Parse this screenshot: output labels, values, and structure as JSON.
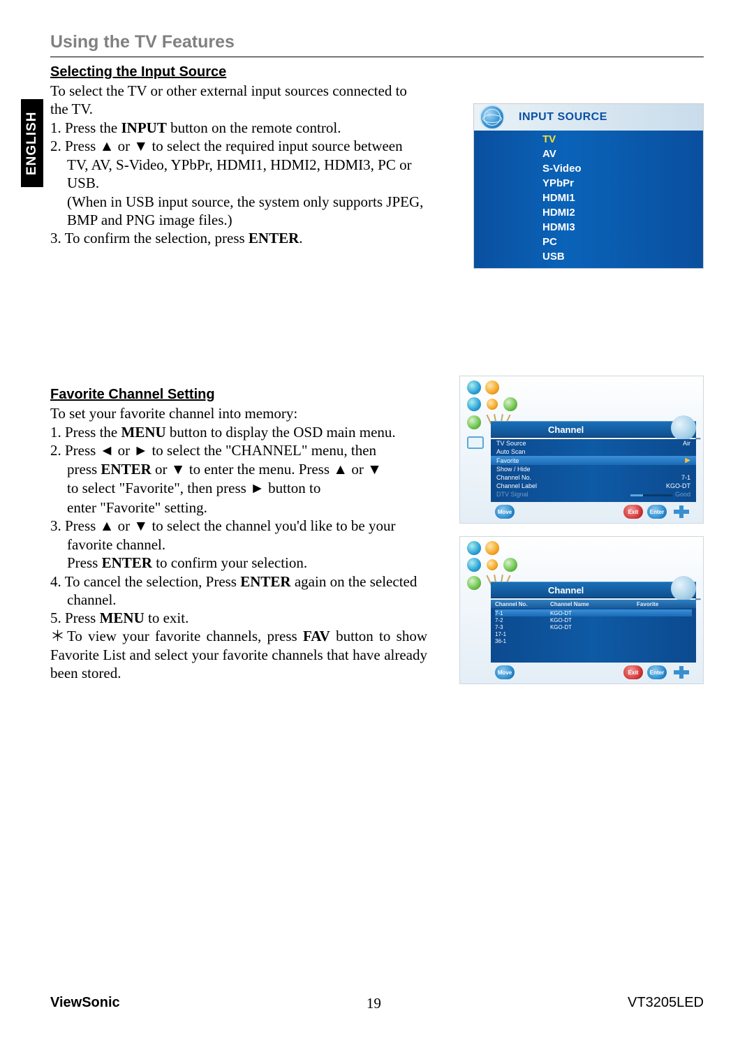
{
  "page": {
    "title": "Using the TV Features",
    "sideTab": "ENGLISH",
    "footer": {
      "brand": "ViewSonic",
      "page": "19",
      "model": "VT3205LED"
    }
  },
  "section1": {
    "heading": "Selecting the Input Source",
    "intro": "To select the TV or other external input sources connected to the TV.",
    "li1_pre": "1. Press the ",
    "li1_bold": "INPUT",
    "li1_post": " button on the remote control.",
    "li2_a": "2. Press ",
    "li2_b": " or ",
    "li2_c": " to select the required input source between ",
    "li2_line2": "TV, AV, S-Video, YPbPr, HDMI1, HDMI2, HDMI3, PC or USB.",
    "li2_paren": "(When in USB input source, the system only supports JPEG, BMP and PNG image files.)",
    "li3_pre": "3. To confirm the selection, press ",
    "li3_bold": "ENTER",
    "li3_post": "."
  },
  "inputSource": {
    "title": "INPUT  SOURCE",
    "items": [
      "TV",
      "AV",
      "S-Video",
      "YPbPr",
      "HDMI1",
      "HDMI2",
      "HDMI3",
      "PC",
      "USB"
    ],
    "selected": "TV",
    "colors": {
      "headerText": "#0a4fa3",
      "itemText": "#ffffff",
      "selectedText": "#f6e03a",
      "bodyGradFrom": "#0a4f9f",
      "bodyGradTo": "#0a63b8"
    }
  },
  "section2": {
    "heading": "Favorite Channel Setting",
    "intro": "To set your favorite channel into memory:",
    "li1_pre": "1. Press the ",
    "li1_bold": "MENU",
    "li1_post": " button to display the OSD main menu.",
    "li2_a": "2. Press ",
    "li2_b": " or ",
    "li2_c": " to select the \"CHANNEL\" menu, then ",
    "li2_line2a": "press ",
    "li2_line2b": "ENTER",
    "li2_line2c": " or ",
    "li2_line2d": " to enter the menu. Press ",
    "li2_line2e": " or ",
    "li2_line3a": "to select \"Favorite\", then press ",
    "li2_line3b": " button to ",
    "li2_line4": "enter \"Favorite\" setting.",
    "li3_a": "3. Press ",
    "li3_b": " or ",
    "li3_c": " to select the channel you'd like to be your ",
    "li3_line2": "favorite channel.",
    "li3_line3a": "Press ",
    "li3_line3b": "ENTER",
    "li3_line3c": " to confirm your selection.",
    "li4_a": "4. To cancel the selection, Press ",
    "li4_b": "ENTER",
    "li4_c": " again on the selected ",
    "li4_line2": "channel.",
    "li5_a": "5. Press ",
    "li5_b": "MENU",
    "li5_c": " to exit.",
    "note_a": "＊To view your favorite channels, press ",
    "note_b": "FAV",
    "note_c": " button to show Favorite List and select your favorite channels that have already been stored."
  },
  "osd1": {
    "title": "Channel",
    "rows": [
      {
        "left": "TV Source",
        "right": "Air",
        "hl": false
      },
      {
        "left": "Auto Scan",
        "right": "",
        "hl": false
      },
      {
        "left": "Favorite",
        "right": "▶",
        "hl": true
      },
      {
        "left": "Show / Hide",
        "right": "",
        "hl": false
      },
      {
        "left": "Channel No.",
        "right": "7-1",
        "hl": false
      },
      {
        "left": "Channel Label",
        "right": "KGO-DT",
        "hl": false
      },
      {
        "left": "DTV Signal",
        "right": "Good",
        "hl": false,
        "bar": true,
        "dim": true
      }
    ],
    "footer": {
      "left": "Move",
      "mid": "Exit",
      "right": "Enter"
    }
  },
  "osd2": {
    "title": "Channel",
    "columns": [
      "Channel No.",
      "Channel Name",
      "Favorite"
    ],
    "rows": [
      {
        "no": "7-1",
        "name": "KGO-DT",
        "fav": "",
        "hl": true
      },
      {
        "no": "7-2",
        "name": "KGO-DT",
        "fav": "",
        "hl": false
      },
      {
        "no": "7-3",
        "name": "KGO-DT",
        "fav": "",
        "hl": false
      },
      {
        "no": "17-1",
        "name": "",
        "fav": "",
        "hl": false
      },
      {
        "no": "36-1",
        "name": "",
        "fav": "",
        "hl": false
      }
    ],
    "footer": {
      "left": "Move",
      "mid": "Exit",
      "right": "Enter"
    }
  },
  "glyphs": {
    "up": "▲",
    "down": "▼",
    "left": "◄",
    "right": "►"
  }
}
